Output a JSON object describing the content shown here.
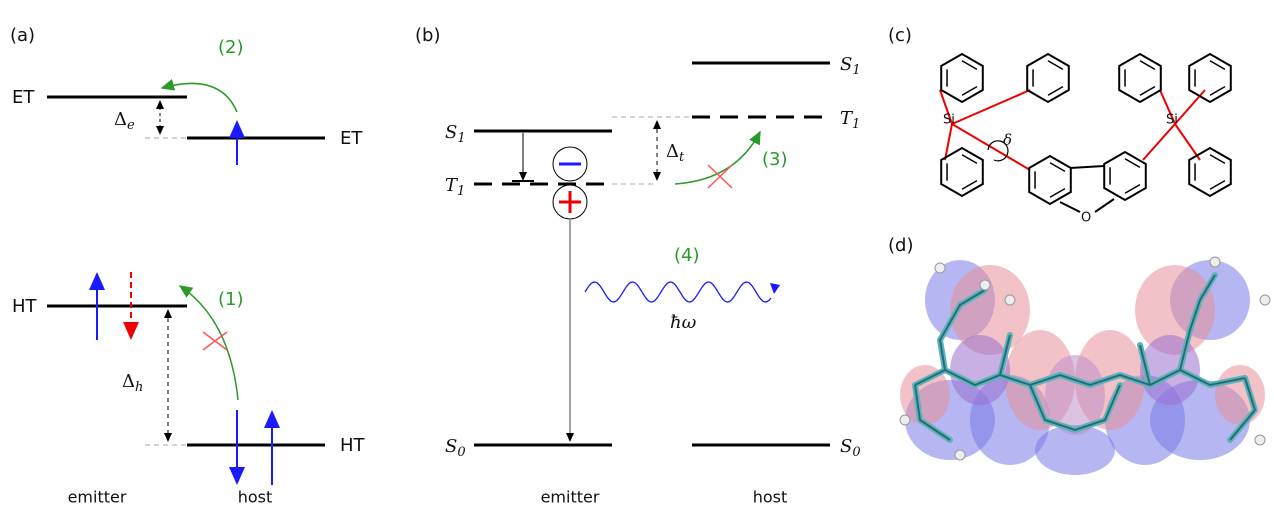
{
  "panel_a": {
    "label": "(a)",
    "levels": {
      "et_emitter": "ET",
      "et_host": "ET",
      "ht_emitter": "HT",
      "ht_host": "HT"
    },
    "delta_e": {
      "symbol": "Δ",
      "sub": "e"
    },
    "delta_h": {
      "symbol": "Δ",
      "sub": "h"
    },
    "step_2": "(2)",
    "step_1": "(1)",
    "emitter": "emitter",
    "host": "host"
  },
  "panel_b": {
    "label": "(b)",
    "s1_emitter": {
      "symbol": "S",
      "sub": "1"
    },
    "t1_emitter": {
      "symbol": "T",
      "sub": "1"
    },
    "s0_emitter": {
      "symbol": "S",
      "sub": "0"
    },
    "s1_host": {
      "symbol": "S",
      "sub": "1"
    },
    "t1_host": {
      "symbol": "T",
      "sub": "1"
    },
    "s0_host": {
      "symbol": "S",
      "sub": "0"
    },
    "delta_t": {
      "symbol": "Δ",
      "sub": "t"
    },
    "step_3": "(3)",
    "step_4": "(4)",
    "photon": "ħω",
    "emitter": "emitter",
    "host": "host"
  },
  "panel_c": {
    "label": "(c)",
    "si_left": "Si",
    "si_right": "Si",
    "angle": "δ",
    "oxygen": "O"
  },
  "panel_d": {
    "label": "(d)"
  }
}
